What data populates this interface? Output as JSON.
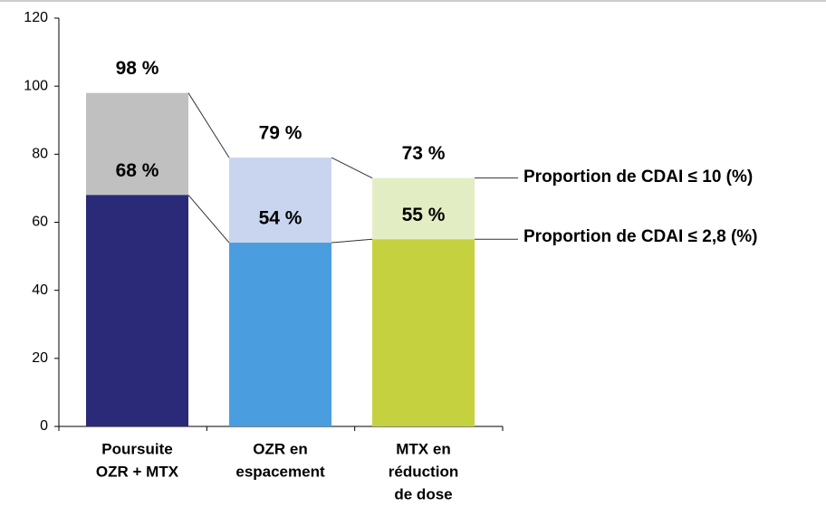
{
  "chart_data": {
    "type": "bar",
    "categories": [
      [
        "Poursuite",
        "OZR + MTX"
      ],
      [
        "OZR en",
        "espacement"
      ],
      [
        "MTX en",
        "réduction",
        "de dose"
      ]
    ],
    "series": [
      {
        "name": "Proportion de CDAI ≤ 10 (%)",
        "colors": [
          "#c0c0c0",
          "#c9d5ef",
          "#e3edc4"
        ],
        "values": [
          98,
          79,
          73
        ],
        "value_labels": [
          "98 %",
          "79 %",
          "73 %"
        ]
      },
      {
        "name": "Proportion de CDAI ≤ 2,8 (%)",
        "colors": [
          "#2a2a78",
          "#4a9ee0",
          "#c5d13f"
        ],
        "values": [
          68,
          54,
          55
        ],
        "value_labels": [
          "68 %",
          "54 %",
          "55 %"
        ]
      }
    ],
    "ylim": [
      0,
      120
    ],
    "yticks": [
      0,
      20,
      40,
      60,
      80,
      100,
      120
    ],
    "legend": "right",
    "overlap": true
  }
}
